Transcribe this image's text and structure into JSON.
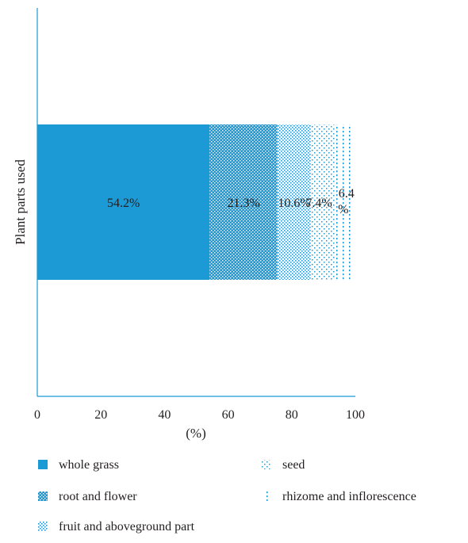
{
  "chart_data": {
    "type": "bar",
    "orientation": "horizontal",
    "stacked": true,
    "categories": [
      "Plant parts used"
    ],
    "ylabel": "Plant parts used",
    "xlabel": "(%)",
    "xlim": [
      0,
      100
    ],
    "xticks": [
      0,
      20,
      40,
      60,
      80,
      100
    ],
    "grid": false,
    "legend_position": "bottom",
    "series": [
      {
        "name": "whole grass",
        "value": 54.2,
        "label": "54.2%",
        "color": "#1b9ad6",
        "pattern": "solid"
      },
      {
        "name": "root and flower",
        "value": 21.3,
        "label": "21.3%",
        "color": "#1b9ad6",
        "pattern": "dense-dots"
      },
      {
        "name": "fruit and aboveground part",
        "value": 10.6,
        "label": "10.6%",
        "color": "#1b9ad6",
        "pattern": "medium-dots"
      },
      {
        "name": "seed",
        "value": 7.4,
        "label": "7.4%",
        "color": "#1b9ad6",
        "pattern": "sparse-dots"
      },
      {
        "name": "rhizome and inflorescence",
        "value": 6.4,
        "label": "6.4%",
        "color": "#1b9ad6",
        "pattern": "vertical-dots"
      }
    ]
  }
}
